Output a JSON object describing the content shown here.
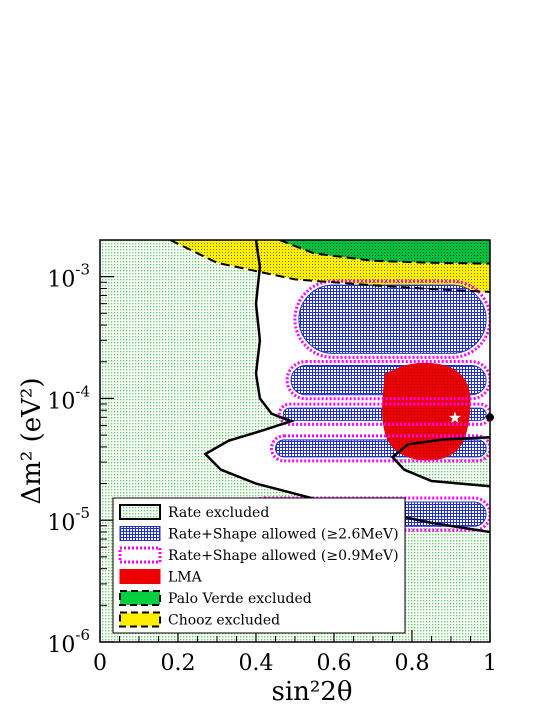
{
  "chart_data": {
    "type": "contour",
    "xlabel": "sin²2θ",
    "ylabel": "Δm² (eV²)",
    "xlim": [
      0,
      1
    ],
    "ylim": [
      1e-06,
      0.002
    ],
    "yscale": "log",
    "x_ticks": [
      "0",
      "0.2",
      "0.4",
      "0.6",
      "0.8",
      "1"
    ],
    "y_ticks": [
      {
        "value": 1e-06,
        "label": "10",
        "exp": "-6"
      },
      {
        "value": 1e-05,
        "label": "10",
        "exp": "-5"
      },
      {
        "value": 0.0001,
        "label": "10",
        "exp": "-4"
      },
      {
        "value": 0.001,
        "label": "10",
        "exp": "-3"
      }
    ],
    "legend_position": "bottom-left",
    "legend": [
      {
        "label": "Rate excluded",
        "style": "black-solid-outline"
      },
      {
        "label": "Rate+Shape allowed (≥2.6MeV)",
        "style": "blue-hatched"
      },
      {
        "label": "Rate+Shape allowed (≥0.9MeV)",
        "style": "magenta-dotted"
      },
      {
        "label": "LMA",
        "style": "red-filled"
      },
      {
        "label": "Palo Verde excluded",
        "style": "green-filled-dashed"
      },
      {
        "label": "Chooz excluded",
        "style": "yellow-filled-dashed"
      }
    ],
    "colors": {
      "background_fill": "#d9f2d9",
      "rate_excluded": "#000000",
      "shape_26": "#2030c8",
      "shape_09": "#ff00ff",
      "lma": "#ee0000",
      "palo_verde": "#00d040",
      "chooz": "#ffee00"
    },
    "best_fit": {
      "x": 0.91,
      "y": 7e-05,
      "marker": "star"
    },
    "best_fit_alt": {
      "x": 1.0,
      "y": 7e-05,
      "marker": "dot"
    },
    "regions": {
      "rate_excluded_boundary": [
        [
          0.4,
          0.002
        ],
        [
          0.41,
          0.0012
        ],
        [
          0.4,
          0.0006
        ],
        [
          0.41,
          0.0003
        ],
        [
          0.4,
          0.00016
        ],
        [
          0.41,
          0.0001
        ],
        [
          0.44,
          7.5e-05
        ],
        [
          0.49,
          6.5e-05
        ],
        [
          0.42,
          5.5e-05
        ],
        [
          0.33,
          4.5e-05
        ],
        [
          0.27,
          3.5e-05
        ],
        [
          0.31,
          2.6e-05
        ],
        [
          0.4,
          2e-05
        ],
        [
          0.55,
          1.5e-05
        ],
        [
          0.7,
          1.2e-05
        ],
        [
          0.85,
          9.5e-06
        ],
        [
          1.0,
          8e-06
        ]
      ],
      "rate_excluded_inner": [
        [
          1.0,
          1.9e-05
        ],
        [
          0.85,
          2.1e-05
        ],
        [
          0.78,
          2.6e-05
        ],
        [
          0.75,
          3.3e-05
        ],
        [
          0.79,
          4.2e-05
        ],
        [
          0.88,
          4.6e-05
        ],
        [
          1.0,
          4.8e-05
        ]
      ],
      "shape26_islands": [
        {
          "x": [
            0.51,
            0.99
          ],
          "ylog_center": -3.35,
          "ylog_half": 0.28
        },
        {
          "x": [
            0.49,
            0.99
          ],
          "ylog_center": -3.85,
          "ylog_half": 0.12
        },
        {
          "x": [
            0.47,
            0.99
          ],
          "ylog_center": -4.13,
          "ylog_half": 0.05
        },
        {
          "x": [
            0.45,
            0.99
          ],
          "ylog_center": -4.41,
          "ylog_half": 0.07
        },
        {
          "x": [
            0.39,
            0.99
          ],
          "ylog_center": -4.95,
          "ylog_half": 0.1
        }
      ],
      "lma": [
        [
          0.73,
          0.00016
        ],
        [
          0.8,
          0.0002
        ],
        [
          0.9,
          0.00019
        ],
        [
          0.95,
          0.00013
        ],
        [
          0.95,
          7e-05
        ],
        [
          0.93,
          4e-05
        ],
        [
          0.88,
          3.1e-05
        ],
        [
          0.8,
          3.1e-05
        ],
        [
          0.74,
          4e-05
        ],
        [
          0.72,
          7e-05
        ]
      ],
      "chooz_boundary": [
        [
          0.18,
          0.002
        ],
        [
          0.3,
          0.0013
        ],
        [
          0.5,
          0.00095
        ],
        [
          0.7,
          0.00085
        ],
        [
          0.85,
          0.00079
        ],
        [
          1.0,
          0.00075
        ]
      ],
      "palo_verde_boundary": [
        [
          0.46,
          0.002
        ],
        [
          0.55,
          0.00155
        ],
        [
          0.7,
          0.00135
        ],
        [
          0.85,
          0.0013
        ],
        [
          1.0,
          0.00128
        ]
      ]
    }
  }
}
